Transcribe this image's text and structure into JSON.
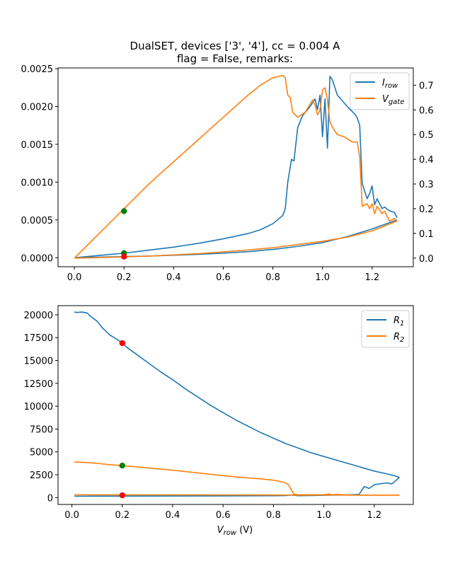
{
  "figure": {
    "title_line1": "DualSET, devices ['3', '4'], cc = 0.004 A",
    "title_line2": "flag = False, remarks:",
    "xlabel": "V",
    "xlabel_sub": "row",
    "xlabel_unit": " (V)"
  },
  "colors": {
    "blue": "#1f77b4",
    "orange": "#ff7f0e",
    "green": "#008000",
    "red": "#ff0000"
  },
  "chart_data": [
    {
      "type": "line",
      "xlim": [
        -0.066,
        1.366
      ],
      "ylim": [
        -0.000119,
        0.00251
      ],
      "y2lim": [
        -0.035,
        0.77
      ],
      "x_ticks": [
        0.0,
        0.2,
        0.4,
        0.6,
        0.8,
        1.0,
        1.2
      ],
      "x_tick_labels": [
        "0.0",
        "0.2",
        "0.4",
        "0.6",
        "0.8",
        "1.0",
        "1.2"
      ],
      "y_ticks": [
        0,
        0.0005,
        0.001,
        0.0015,
        0.002,
        0.0025
      ],
      "y_tick_labels": [
        "0.0000",
        "0.0005",
        "0.0010",
        "0.0015",
        "0.0020",
        "0.0025"
      ],
      "y2_ticks": [
        0,
        0.1,
        0.2,
        0.3,
        0.4,
        0.5,
        0.6,
        0.7
      ],
      "y2_tick_labels": [
        "0.0",
        "0.1",
        "0.2",
        "0.3",
        "0.4",
        "0.5",
        "0.6",
        "0.7"
      ],
      "legend": {
        "position": "top-right",
        "entries": [
          {
            "name": "I",
            "sub": "row",
            "color": "#1f77b4"
          },
          {
            "name": "V",
            "sub": "gate",
            "color": "#ff7f0e"
          }
        ]
      },
      "series": [
        {
          "name": "I_row sweep-up",
          "axis": "left",
          "color": "#1f77b4",
          "x": [
            0,
            0.1,
            0.2,
            0.3,
            0.4,
            0.5,
            0.6,
            0.7,
            0.75,
            0.8,
            0.84,
            0.85,
            0.86,
            0.875,
            0.885,
            0.9,
            0.92,
            0.95,
            0.97,
            0.98,
            0.99,
            1.0,
            1.01,
            1.02,
            1.03,
            1.04,
            1.06,
            1.1,
            1.13,
            1.14,
            1.15,
            1.16,
            1.18,
            1.19,
            1.2,
            1.21,
            1.22,
            1.24,
            1.25,
            1.27,
            1.29,
            1.3
          ],
          "y": [
            0,
            3e-05,
            6e-05,
            0.0001,
            0.00014,
            0.00019,
            0.00025,
            0.00032,
            0.00037,
            0.00045,
            0.00056,
            0.00065,
            0.001,
            0.0013,
            0.00128,
            0.00172,
            0.00188,
            0.002,
            0.0021,
            0.00196,
            0.00215,
            0.0016,
            0.0021,
            0.00145,
            0.0024,
            0.00235,
            0.00215,
            0.002,
            0.0019,
            0.00185,
            0.00175,
            0.00098,
            0.00078,
            0.00085,
            0.00095,
            0.0007,
            0.00078,
            0.00065,
            0.00067,
            0.00062,
            0.0006,
            0.00053
          ]
        },
        {
          "name": "I_row sweep-down",
          "axis": "left",
          "color": "#1f77b4",
          "x": [
            1.3,
            1.2,
            1.1,
            1.0,
            0.9,
            0.8,
            0.7,
            0.6,
            0.5,
            0.4,
            0.3,
            0.2,
            0.1,
            0
          ],
          "y": [
            0.0005,
            0.00038,
            0.00028,
            0.0002,
            0.00015,
            0.00011,
            8e-05,
            6e-05,
            4.5e-05,
            3.3e-05,
            2.2e-05,
            1.5e-05,
            8e-06,
            0
          ]
        },
        {
          "name": "V_gate sweep-up",
          "axis": "right",
          "color": "#ff7f0e",
          "x": [
            0,
            0.1,
            0.2,
            0.3,
            0.4,
            0.5,
            0.6,
            0.7,
            0.75,
            0.8,
            0.84,
            0.85,
            0.86,
            0.87,
            0.88,
            0.9,
            0.93,
            0.96,
            0.97,
            0.98,
            0.99,
            1.0,
            1.01,
            1.02,
            1.03,
            1.04,
            1.06,
            1.09,
            1.12,
            1.14,
            1.15,
            1.16,
            1.18,
            1.19,
            1.2,
            1.21,
            1.22,
            1.24,
            1.25,
            1.27,
            1.29,
            1.3
          ],
          "y": [
            0,
            0.1,
            0.2,
            0.3,
            0.39,
            0.48,
            0.57,
            0.66,
            0.7,
            0.73,
            0.74,
            0.73,
            0.66,
            0.65,
            0.59,
            0.57,
            0.59,
            0.64,
            0.62,
            0.58,
            0.6,
            0.68,
            0.69,
            0.64,
            0.55,
            0.53,
            0.5,
            0.49,
            0.47,
            0.47,
            0.41,
            0.21,
            0.22,
            0.2,
            0.22,
            0.18,
            0.21,
            0.18,
            0.19,
            0.15,
            0.16,
            0.15
          ]
        },
        {
          "name": "V_gate sweep-down",
          "axis": "right",
          "color": "#ff7f0e",
          "x": [
            1.3,
            1.2,
            1.1,
            1.0,
            0.9,
            0.8,
            0.7,
            0.6,
            0.5,
            0.4,
            0.3,
            0.2,
            0.1,
            0
          ],
          "y": [
            0.15,
            0.11,
            0.085,
            0.068,
            0.055,
            0.042,
            0.033,
            0.025,
            0.018,
            0.013,
            0.008,
            0.005,
            0.002,
            0
          ]
        }
      ],
      "markers": [
        {
          "x": 0.2,
          "y": 0.19,
          "axis": "right",
          "color": "#008000"
        },
        {
          "x": 0.2,
          "y": 6e-05,
          "axis": "left",
          "color": "#008000"
        },
        {
          "x": 0.2,
          "y": 1.5e-05,
          "axis": "left",
          "color": "#ff0000"
        }
      ]
    },
    {
      "type": "line",
      "xlim": [
        -0.055,
        1.355
      ],
      "ylim": [
        -750,
        21000
      ],
      "x_ticks": [
        0.0,
        0.2,
        0.4,
        0.6,
        0.8,
        1.0,
        1.2
      ],
      "x_tick_labels": [
        "0.0",
        "0.2",
        "0.4",
        "0.6",
        "0.8",
        "1.0",
        "1.2"
      ],
      "y_ticks": [
        0,
        2500,
        5000,
        7500,
        10000,
        12500,
        15000,
        17500,
        20000
      ],
      "y_tick_labels": [
        "0",
        "2500",
        "5000",
        "7500",
        "10000",
        "12500",
        "15000",
        "17500",
        "20000"
      ],
      "legend": {
        "position": "top-right",
        "entries": [
          {
            "name": "R",
            "sub": "1",
            "color": "#1f77b4"
          },
          {
            "name": "R",
            "sub": "2",
            "color": "#ff7f0e"
          }
        ]
      },
      "series": [
        {
          "name": "R1 sweep-up",
          "axis": "left",
          "color": "#1f77b4",
          "x": [
            0.01,
            0.05,
            0.2,
            0.4,
            0.6,
            0.8,
            0.85,
            0.87,
            0.9,
            1.0,
            1.1,
            1.14,
            1.16,
            1.18,
            1.2,
            1.22,
            1.25,
            1.27,
            1.3
          ],
          "y": [
            150,
            150,
            160,
            170,
            180,
            200,
            220,
            280,
            200,
            250,
            300,
            350,
            1200,
            1000,
            1400,
            1500,
            1600,
            1500,
            2200
          ]
        },
        {
          "name": "R1 sweep-down",
          "axis": "left",
          "color": "#1f77b4",
          "x": [
            0.01,
            0.02,
            0.04,
            0.06,
            0.08,
            0.1,
            0.12,
            0.15,
            0.18,
            0.2,
            0.22,
            0.25,
            0.3,
            0.35,
            0.4,
            0.45,
            0.5,
            0.55,
            0.6,
            0.65,
            0.7,
            0.75,
            0.8,
            0.85,
            0.9,
            0.95,
            1.0,
            1.05,
            1.1,
            1.15,
            1.2,
            1.25,
            1.28,
            1.3
          ],
          "y": [
            20300,
            20250,
            20300,
            20200,
            19700,
            19300,
            18600,
            17800,
            17300,
            16900,
            16400,
            15800,
            14800,
            13800,
            12900,
            11900,
            11000,
            10100,
            9300,
            8500,
            7800,
            7100,
            6500,
            5900,
            5400,
            4900,
            4500,
            4100,
            3700,
            3300,
            2900,
            2600,
            2400,
            2200
          ]
        },
        {
          "name": "R2 sweep-up",
          "axis": "left",
          "color": "#ff7f0e",
          "x": [
            0.01,
            0.2,
            0.4,
            0.6,
            0.8,
            0.9,
            1.0,
            1.1,
            1.2,
            1.3
          ],
          "y": [
            300,
            290,
            290,
            285,
            280,
            260,
            280,
            270,
            275,
            260
          ]
        },
        {
          "name": "R2 sweep-down",
          "axis": "left",
          "color": "#ff7f0e",
          "x": [
            0.01,
            0.05,
            0.1,
            0.15,
            0.2,
            0.3,
            0.4,
            0.5,
            0.6,
            0.7,
            0.75,
            0.8,
            0.84,
            0.86,
            0.87,
            0.88,
            0.9,
            1.0,
            1.02,
            1.03,
            1.05,
            1.1,
            1.2,
            1.3
          ],
          "y": [
            3900,
            3850,
            3750,
            3600,
            3500,
            3250,
            3000,
            2700,
            2400,
            2150,
            2050,
            1900,
            1700,
            1400,
            900,
            400,
            300,
            300,
            400,
            300,
            350,
            280,
            260,
            280
          ]
        }
      ],
      "markers": [
        {
          "x": 0.2,
          "y": 16900,
          "axis": "left",
          "color": "#ff0000"
        },
        {
          "x": 0.2,
          "y": 3500,
          "axis": "left",
          "color": "#008000"
        },
        {
          "x": 0.2,
          "y": 250,
          "axis": "left",
          "color": "#ff0000"
        }
      ]
    }
  ]
}
